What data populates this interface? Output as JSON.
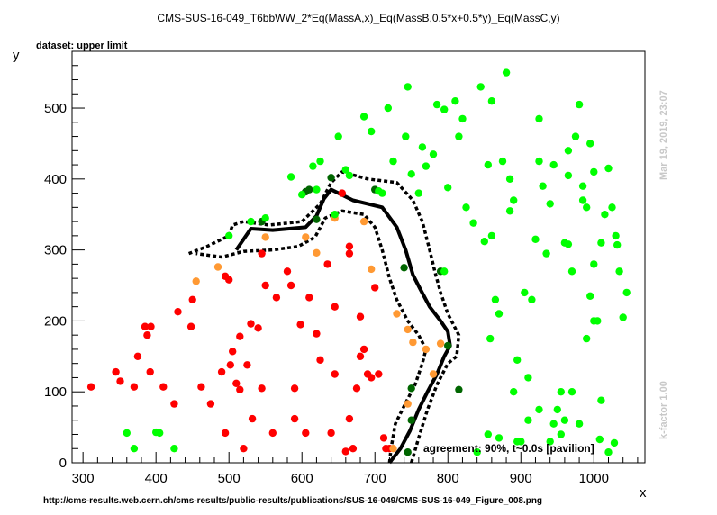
{
  "colors": {
    "excluded": "#ff0000",
    "marginal": "#ff9933",
    "near_boundary": "#006600",
    "allowed": "#00ff00",
    "contour": "#000000",
    "frame": "#000000",
    "watermark": "#c8c8c8"
  },
  "chart_data": {
    "type": "scatter",
    "title": "CMS-SUS-16-049_T6bbWW_2*Eq(MassA,x)_Eq(MassB,0.5*x+0.5*y)_Eq(MassC,y)",
    "subtitle": "dataset: upper limit",
    "xlabel": "x",
    "ylabel": "y",
    "xlim": [
      285,
      1070
    ],
    "ylim": [
      0,
      580
    ],
    "xticks": [
      300,
      400,
      500,
      600,
      700,
      800,
      900,
      1000
    ],
    "yticks": [
      0,
      100,
      200,
      300,
      400,
      500
    ],
    "grid": false,
    "legend": "none",
    "annotation": "agreement: 90%, t~0.0s [pavilion]",
    "timestamp": "Mar 19, 2019, 23:07",
    "kfactor": "k-factor 1.00",
    "footer": "http://cms-results.web.cern.ch/cms-results/public-results/publications/SUS-16-049/CMS-SUS-16-049_Figure_008.png",
    "series": [
      {
        "key": "excluded",
        "points": [
          [
            311,
            107
          ],
          [
            345,
            128
          ],
          [
            351,
            115
          ],
          [
            370,
            107
          ],
          [
            375,
            150
          ],
          [
            385,
            192
          ],
          [
            388,
            180
          ],
          [
            393,
            192
          ],
          [
            392,
            128
          ],
          [
            410,
            107
          ],
          [
            425,
            83
          ],
          [
            430,
            213
          ],
          [
            448,
            192
          ],
          [
            450,
            230
          ],
          [
            462,
            107
          ],
          [
            475,
            83
          ],
          [
            490,
            128
          ],
          [
            495,
            263
          ],
          [
            500,
            258
          ],
          [
            495,
            42
          ],
          [
            502,
            138
          ],
          [
            505,
            157
          ],
          [
            510,
            112
          ],
          [
            515,
            103
          ],
          [
            515,
            178
          ],
          [
            520,
            20
          ],
          [
            525,
            138
          ],
          [
            530,
            196
          ],
          [
            532,
            62
          ],
          [
            540,
            190
          ],
          [
            545,
            295
          ],
          [
            545,
            105
          ],
          [
            550,
            250
          ],
          [
            560,
            42
          ],
          [
            565,
            233
          ],
          [
            580,
            270
          ],
          [
            585,
            250
          ],
          [
            590,
            105
          ],
          [
            590,
            62
          ],
          [
            598,
            195
          ],
          [
            605,
            42
          ],
          [
            610,
            233
          ],
          [
            620,
            182
          ],
          [
            625,
            145
          ],
          [
            635,
            280
          ],
          [
            640,
            42
          ],
          [
            645,
            125
          ],
          [
            645,
            220
          ],
          [
            655,
            380
          ],
          [
            660,
            16
          ],
          [
            665,
            62
          ],
          [
            665,
            305
          ],
          [
            665,
            295
          ],
          [
            670,
            20
          ],
          [
            675,
            105
          ],
          [
            680,
            150
          ],
          [
            680,
            206
          ],
          [
            685,
            160
          ],
          [
            690,
            125
          ],
          [
            695,
            120
          ],
          [
            705,
            125
          ],
          [
            700,
            247
          ],
          [
            712,
            35
          ],
          [
            715,
            20
          ],
          [
            720,
            20
          ]
        ]
      },
      {
        "key": "marginal",
        "points": [
          [
            455,
            256
          ],
          [
            485,
            276
          ],
          [
            550,
            318
          ],
          [
            605,
            318
          ],
          [
            620,
            296
          ],
          [
            645,
            345
          ],
          [
            685,
            340
          ],
          [
            695,
            273
          ],
          [
            725,
            20
          ],
          [
            730,
            210
          ],
          [
            745,
            188
          ],
          [
            745,
            83
          ],
          [
            752,
            170
          ],
          [
            770,
            160
          ],
          [
            780,
            125
          ],
          [
            790,
            168
          ]
        ]
      },
      {
        "key": "near_boundary",
        "points": [
          [
            545,
            340
          ],
          [
            605,
            382
          ],
          [
            610,
            385
          ],
          [
            620,
            343
          ],
          [
            640,
            402
          ],
          [
            700,
            385
          ],
          [
            740,
            275
          ],
          [
            750,
            105
          ],
          [
            750,
            60
          ],
          [
            745,
            15
          ],
          [
            790,
            270
          ],
          [
            800,
            165
          ],
          [
            815,
            103
          ]
        ]
      },
      {
        "key": "allowed",
        "points": [
          [
            500,
            320
          ],
          [
            530,
            340
          ],
          [
            550,
            345
          ],
          [
            585,
            403
          ],
          [
            600,
            378
          ],
          [
            615,
            418
          ],
          [
            620,
            385
          ],
          [
            625,
            425
          ],
          [
            645,
            350
          ],
          [
            650,
            460
          ],
          [
            660,
            413
          ],
          [
            665,
            405
          ],
          [
            685,
            488
          ],
          [
            695,
            467
          ],
          [
            705,
            383
          ],
          [
            710,
            380
          ],
          [
            718,
            500
          ],
          [
            725,
            425
          ],
          [
            742,
            460
          ],
          [
            745,
            530
          ],
          [
            750,
            407
          ],
          [
            760,
            380
          ],
          [
            765,
            445
          ],
          [
            770,
            418
          ],
          [
            780,
            435
          ],
          [
            785,
            505
          ],
          [
            795,
            270
          ],
          [
            795,
            498
          ],
          [
            800,
            388
          ],
          [
            810,
            510
          ],
          [
            815,
            460
          ],
          [
            820,
            485
          ],
          [
            825,
            360
          ],
          [
            835,
            338
          ],
          [
            845,
            530
          ],
          [
            850,
            312
          ],
          [
            855,
            420
          ],
          [
            858,
            175
          ],
          [
            860,
            320
          ],
          [
            860,
            510
          ],
          [
            865,
            230
          ],
          [
            870,
            210
          ],
          [
            875,
            425
          ],
          [
            880,
            550
          ],
          [
            885,
            400
          ],
          [
            885,
            355
          ],
          [
            890,
            370
          ],
          [
            895,
            30
          ],
          [
            890,
            100
          ],
          [
            895,
            145
          ],
          [
            900,
            30
          ],
          [
            905,
            240
          ],
          [
            910,
            120
          ],
          [
            915,
            230
          ],
          [
            920,
            315
          ],
          [
            925,
            425
          ],
          [
            925,
            485
          ],
          [
            930,
            390
          ],
          [
            935,
            295
          ],
          [
            940,
            365
          ],
          [
            945,
            420
          ],
          [
            945,
            55
          ],
          [
            950,
            75
          ],
          [
            955,
            40
          ],
          [
            955,
            100
          ],
          [
            960,
            310
          ],
          [
            965,
            405
          ],
          [
            965,
            440
          ],
          [
            970,
            270
          ],
          [
            975,
            460
          ],
          [
            980,
            505
          ],
          [
            985,
            390
          ],
          [
            990,
            360
          ],
          [
            995,
            450
          ],
          [
            1000,
            280
          ],
          [
            1005,
            200
          ],
          [
            1010,
            310
          ],
          [
            1015,
            350
          ],
          [
            1020,
            415
          ],
          [
            1025,
            360
          ],
          [
            1030,
            320
          ],
          [
            1032,
            307
          ],
          [
            1035,
            270
          ],
          [
            1040,
            205
          ],
          [
            1045,
            240
          ],
          [
            360,
            42
          ],
          [
            370,
            20
          ],
          [
            400,
            43
          ],
          [
            405,
            42
          ],
          [
            425,
            20
          ],
          [
            1008,
            33
          ],
          [
            1020,
            15
          ],
          [
            1028,
            28
          ],
          [
            1010,
            88
          ],
          [
            980,
            55
          ],
          [
            995,
            235
          ],
          [
            970,
            100
          ],
          [
            960,
            60
          ],
          [
            940,
            30
          ],
          [
            925,
            75
          ],
          [
            910,
            60
          ],
          [
            870,
            35
          ],
          [
            855,
            40
          ],
          [
            840,
            15
          ],
          [
            1000,
            410
          ],
          [
            1000,
            200
          ],
          [
            990,
            175
          ],
          [
            985,
            370
          ],
          [
            965,
            308
          ]
        ]
      }
    ],
    "contours": [
      {
        "style": "solid",
        "points": [
          [
            720,
            0
          ],
          [
            735,
            20
          ],
          [
            748,
            45
          ],
          [
            760,
            75
          ],
          [
            772,
            100
          ],
          [
            785,
            125
          ],
          [
            795,
            150
          ],
          [
            803,
            165
          ],
          [
            800,
            185
          ],
          [
            790,
            200
          ],
          [
            775,
            220
          ],
          [
            762,
            245
          ],
          [
            752,
            265
          ],
          [
            742,
            300
          ],
          [
            730,
            332
          ],
          [
            710,
            360
          ],
          [
            670,
            370
          ],
          [
            640,
            385
          ],
          [
            630,
            372
          ],
          [
            620,
            348
          ],
          [
            605,
            332
          ],
          [
            560,
            328
          ],
          [
            530,
            330
          ],
          [
            510,
            300
          ]
        ]
      },
      {
        "style": "dashed",
        "points": [
          [
            750,
            0
          ],
          [
            760,
            35
          ],
          [
            772,
            75
          ],
          [
            785,
            110
          ],
          [
            800,
            140
          ],
          [
            812,
            150
          ],
          [
            815,
            180
          ],
          [
            800,
            210
          ],
          [
            790,
            240
          ],
          [
            782,
            270
          ],
          [
            775,
            300
          ],
          [
            765,
            340
          ],
          [
            752,
            370
          ],
          [
            730,
            395
          ],
          [
            690,
            400
          ],
          [
            655,
            410
          ],
          [
            640,
            395
          ],
          [
            625,
            365
          ],
          [
            600,
            340
          ],
          [
            555,
            335
          ],
          [
            520,
            340
          ],
          [
            505,
            335
          ],
          [
            500,
            320
          ],
          [
            470,
            305
          ],
          [
            445,
            295
          ]
        ]
      },
      {
        "style": "dashed",
        "points": [
          [
            720,
            0
          ],
          [
            722,
            20
          ],
          [
            728,
            55
          ],
          [
            740,
            80
          ],
          [
            755,
            110
          ],
          [
            765,
            140
          ],
          [
            770,
            160
          ],
          [
            760,
            180
          ],
          [
            745,
            200
          ],
          [
            730,
            230
          ],
          [
            720,
            260
          ],
          [
            710,
            300
          ],
          [
            700,
            332
          ],
          [
            685,
            350
          ],
          [
            655,
            355
          ],
          [
            632,
            345
          ],
          [
            618,
            318
          ],
          [
            595,
            305
          ],
          [
            560,
            300
          ],
          [
            520,
            298
          ],
          [
            490,
            290
          ],
          [
            455,
            295
          ]
        ]
      }
    ]
  }
}
